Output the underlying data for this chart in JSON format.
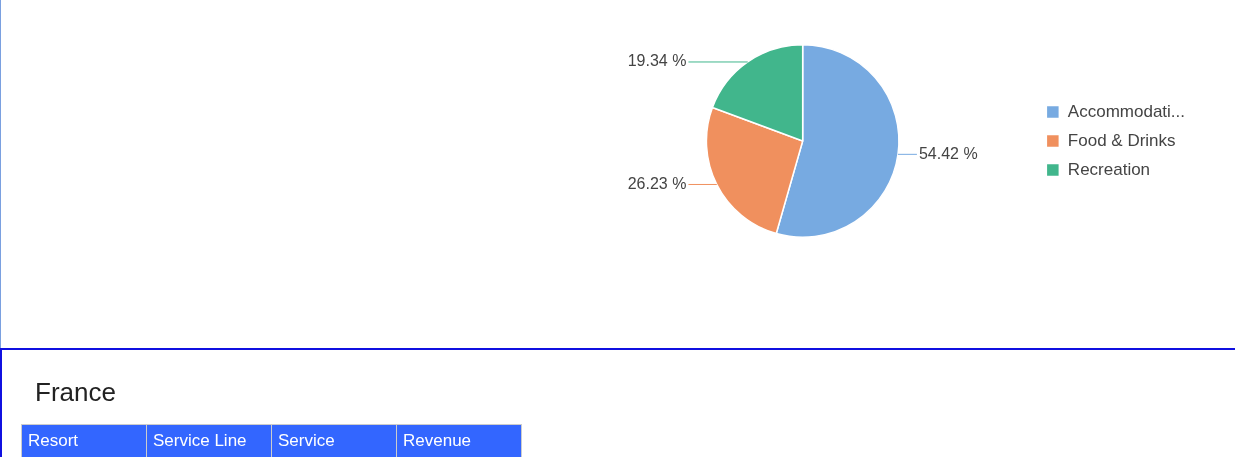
{
  "chart_data": [
    {
      "type": "pie",
      "categories": [
        "Accommodati...",
        "Food & Drinks",
        "Recreation"
      ],
      "values": [
        54.42,
        26.23,
        19.34
      ],
      "colors": [
        "#77aae1",
        "#f0905e",
        "#41b68c"
      ],
      "value_labels": [
        "54.42 %",
        "26.23 %",
        "19.34 %"
      ],
      "legend": "right"
    },
    {
      "type": "other",
      "title": "France",
      "annotations": [
        "Resort",
        "Service Line",
        "Service",
        "Revenue"
      ]
    }
  ]
}
